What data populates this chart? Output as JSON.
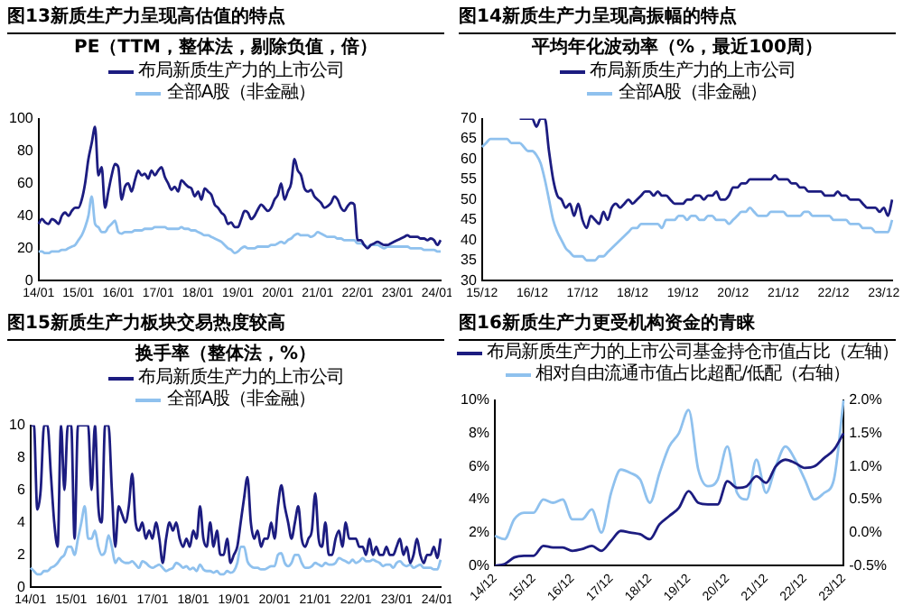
{
  "chart_data": [
    {
      "type": "line",
      "title": "图13新质生产力呈现高估值的特点",
      "subtitle": "PE（TTM，整体法，剔除负值，倍）",
      "legend": "top",
      "marker": "none",
      "categories": [
        "14/01",
        null,
        null,
        null,
        null,
        null,
        null,
        null,
        null,
        null,
        null,
        null,
        "15/01",
        null,
        null,
        null,
        null,
        null,
        null,
        null,
        null,
        null,
        null,
        null,
        "16/01",
        null,
        null,
        null,
        null,
        null,
        null,
        null,
        null,
        null,
        null,
        null,
        "17/01",
        null,
        null,
        null,
        null,
        null,
        null,
        null,
        null,
        null,
        null,
        null,
        "18/01",
        null,
        null,
        null,
        null,
        null,
        null,
        null,
        null,
        null,
        null,
        null,
        "19/01",
        null,
        null,
        null,
        null,
        null,
        null,
        null,
        null,
        null,
        null,
        null,
        "20/01",
        null,
        null,
        null,
        null,
        null,
        null,
        null,
        null,
        null,
        null,
        null,
        "21/01",
        null,
        null,
        null,
        null,
        null,
        null,
        null,
        null,
        null,
        null,
        null,
        "22/01",
        null,
        null,
        null,
        null,
        null,
        null,
        null,
        null,
        null,
        null,
        null,
        "23/01",
        null,
        null,
        null,
        null,
        null,
        null,
        null,
        null,
        null,
        null,
        null,
        "24/01",
        null
      ],
      "series": [
        {
          "name": "布局新质生产力的上市公司",
          "color": "#1c1c80",
          "values": [
            35,
            38,
            36,
            35,
            38,
            37,
            35,
            40,
            42,
            40,
            43,
            45,
            45,
            50,
            60,
            75,
            85,
            95,
            65,
            70,
            45,
            55,
            65,
            72,
            70,
            50,
            58,
            60,
            55,
            62,
            68,
            65,
            66,
            63,
            68,
            65,
            68,
            70,
            64,
            60,
            56,
            58,
            55,
            62,
            60,
            58,
            57,
            52,
            55,
            50,
            57,
            55,
            53,
            47,
            45,
            42,
            40,
            35,
            36,
            33,
            33,
            38,
            43,
            42,
            38,
            40,
            44,
            47,
            45,
            43,
            45,
            50,
            53,
            60,
            50,
            55,
            60,
            75,
            68,
            65,
            57,
            55,
            56,
            52,
            50,
            48,
            45,
            46,
            48,
            52,
            50,
            45,
            43,
            46,
            48,
            47,
            25,
            25,
            22,
            20,
            22,
            23,
            24,
            23,
            22,
            22,
            23,
            24,
            25,
            26,
            27,
            28,
            27,
            27,
            27,
            26,
            26,
            25,
            26,
            25,
            22,
            25
          ]
        },
        {
          "name": "全部A股（非金融）",
          "color": "#8fc1ee",
          "values": [
            18,
            18,
            17,
            17,
            18,
            18,
            18,
            19,
            19,
            20,
            21,
            22,
            25,
            28,
            33,
            40,
            52,
            35,
            33,
            30,
            30,
            33,
            35,
            37,
            30,
            29,
            30,
            30,
            30,
            31,
            31,
            31,
            32,
            32,
            32,
            33,
            33,
            33,
            33,
            32,
            32,
            32,
            32,
            33,
            32,
            32,
            31,
            31,
            30,
            29,
            28,
            28,
            27,
            26,
            25,
            24,
            22,
            20,
            19,
            17,
            18,
            20,
            21,
            20,
            20,
            20,
            21,
            21,
            21,
            21,
            22,
            22,
            23,
            24,
            23,
            25,
            26,
            28,
            29,
            28,
            28,
            28,
            27,
            28,
            30,
            29,
            28,
            27,
            27,
            27,
            26,
            26,
            25,
            25,
            25,
            25,
            23,
            23,
            22,
            21,
            22,
            22,
            22,
            21,
            20,
            21,
            21,
            21,
            21,
            21,
            21,
            21,
            20,
            20,
            20,
            20,
            19,
            19,
            19,
            19,
            18,
            18
          ]
        }
      ],
      "ylim": [
        0,
        100
      ],
      "yticks": [
        0,
        20,
        40,
        60,
        80,
        100
      ]
    },
    {
      "type": "line",
      "title": "图14新质生产力呈现高振幅的特点",
      "subtitle": "平均年化波动率（%，最近100周）",
      "legend": "top",
      "marker": "none",
      "categories": [
        "15/12",
        null,
        null,
        null,
        null,
        null,
        null,
        null,
        null,
        null,
        null,
        null,
        "16/12",
        null,
        null,
        null,
        null,
        null,
        null,
        null,
        null,
        null,
        null,
        null,
        "17/12",
        null,
        null,
        null,
        null,
        null,
        null,
        null,
        null,
        null,
        null,
        null,
        "18/12",
        null,
        null,
        null,
        null,
        null,
        null,
        null,
        null,
        null,
        null,
        null,
        "19/12",
        null,
        null,
        null,
        null,
        null,
        null,
        null,
        null,
        null,
        null,
        null,
        "20/12",
        null,
        null,
        null,
        null,
        null,
        null,
        null,
        null,
        null,
        null,
        null,
        "21/12",
        null,
        null,
        null,
        null,
        null,
        null,
        null,
        null,
        null,
        null,
        null,
        "22/12",
        null,
        null,
        null,
        null,
        null,
        null,
        null,
        null,
        null,
        null,
        null,
        "23/12",
        null,
        null
      ],
      "series": [
        {
          "name": "布局新质生产力的上市公司",
          "color": "#1c1c80",
          "values": [
            null,
            null,
            null,
            null,
            null,
            null,
            null,
            null,
            null,
            70,
            70,
            70,
            70,
            68,
            70,
            70,
            62,
            55,
            51,
            50,
            48,
            49,
            46,
            49,
            45,
            43,
            46,
            45,
            44,
            47,
            45,
            48,
            49,
            48,
            49,
            50,
            49,
            50,
            51,
            52,
            52,
            51,
            52,
            51,
            51,
            50,
            49,
            49,
            49,
            50,
            50,
            51,
            51,
            50,
            51,
            51,
            52,
            50,
            50,
            51,
            53,
            53,
            54,
            54,
            55,
            55,
            55,
            55,
            55,
            55,
            56,
            55,
            55,
            55,
            54,
            54,
            53,
            53,
            52,
            52,
            52,
            52,
            51,
            51,
            51,
            52,
            51,
            51,
            50,
            50,
            50,
            49,
            48,
            48,
            48,
            47,
            48,
            46,
            50
          ]
        },
        {
          "name": "全部A股（非金融）",
          "color": "#8fc1ee",
          "values": [
            63,
            64,
            65,
            65,
            65,
            65,
            65,
            64,
            64,
            64,
            63,
            62,
            62,
            61,
            59,
            55,
            50,
            45,
            42,
            40,
            38,
            37,
            36,
            36,
            36,
            35,
            35,
            35,
            36,
            36,
            37,
            38,
            39,
            40,
            41,
            42,
            43,
            43,
            44,
            44,
            44,
            44,
            44,
            43,
            45,
            45,
            45,
            46,
            46,
            45,
            46,
            46,
            45,
            45,
            46,
            46,
            45,
            45,
            45,
            44,
            45,
            46,
            47,
            47,
            48,
            47,
            46,
            46,
            46,
            47,
            47,
            47,
            47,
            46,
            46,
            46,
            46,
            47,
            47,
            46,
            46,
            46,
            46,
            46,
            45,
            45,
            45,
            45,
            44,
            44,
            44,
            43,
            43,
            43,
            42,
            42,
            42,
            42,
            45
          ]
        }
      ],
      "ylim": [
        30,
        70
      ],
      "yticks": [
        30,
        35,
        40,
        45,
        50,
        55,
        60,
        65,
        70
      ]
    },
    {
      "type": "line",
      "title": "图15新质生产力板块交易热度较高",
      "subtitle": "换手率（整体法，%）",
      "legend": "top",
      "marker": "none",
      "categories": [
        "14/01",
        null,
        null,
        null,
        null,
        null,
        null,
        null,
        null,
        null,
        null,
        null,
        "15/01",
        null,
        null,
        null,
        null,
        null,
        null,
        null,
        null,
        null,
        null,
        null,
        "16/01",
        null,
        null,
        null,
        null,
        null,
        null,
        null,
        null,
        null,
        null,
        null,
        "17/01",
        null,
        null,
        null,
        null,
        null,
        null,
        null,
        null,
        null,
        null,
        null,
        "18/01",
        null,
        null,
        null,
        null,
        null,
        null,
        null,
        null,
        null,
        null,
        null,
        "19/01",
        null,
        null,
        null,
        null,
        null,
        null,
        null,
        null,
        null,
        null,
        null,
        "20/01",
        null,
        null,
        null,
        null,
        null,
        null,
        null,
        null,
        null,
        null,
        null,
        "21/01",
        null,
        null,
        null,
        null,
        null,
        null,
        null,
        null,
        null,
        null,
        null,
        "22/01",
        null,
        null,
        null,
        null,
        null,
        null,
        null,
        null,
        null,
        null,
        null,
        "23/01",
        null,
        null,
        null,
        null,
        null,
        null,
        null,
        null,
        null,
        null,
        null,
        "24/01",
        null
      ],
      "series": [
        {
          "name": "布局新质生产力的上市公司",
          "color": "#1c1c80",
          "values": [
            10,
            10,
            4.8,
            6,
            10,
            10,
            7,
            4,
            2.5,
            10,
            6,
            10,
            10,
            3,
            10,
            10,
            10,
            10,
            6,
            10,
            5,
            4,
            10,
            10,
            6,
            2.5,
            5,
            4.5,
            4,
            5,
            7,
            4,
            3.5,
            4,
            3,
            3.5,
            3,
            4,
            3,
            1.5,
            3,
            4,
            3.5,
            4,
            3,
            2.5,
            3,
            2.5,
            3.5,
            3,
            5,
            3,
            2.5,
            4,
            2.5,
            3.5,
            2,
            2,
            3,
            1.5,
            2,
            2.5,
            4,
            5.5,
            6.8,
            4,
            3,
            3.5,
            2.5,
            3,
            3,
            4,
            3,
            5,
            6.3,
            5,
            4,
            3,
            4,
            5,
            3,
            2.5,
            3,
            3.5,
            5.8,
            3,
            2.5,
            4,
            2,
            2,
            3,
            3.5,
            2.5,
            4,
            3,
            3,
            3,
            2.5,
            2.5,
            2,
            3,
            2,
            2.5,
            2,
            2,
            2.5,
            2,
            2,
            2.5,
            3,
            2,
            2.5,
            1.5,
            2,
            3,
            2,
            1.5,
            2,
            2,
            2.5,
            1.8,
            3
          ]
        },
        {
          "name": "全部A股（非金融）",
          "color": "#8fc1ee",
          "values": [
            1.2,
            1,
            0.8,
            0.8,
            1,
            1,
            1.2,
            1.3,
            1.5,
            1.8,
            2,
            2.5,
            2.5,
            2,
            3,
            4,
            5,
            3,
            3,
            3.5,
            2.5,
            2,
            2.2,
            3.2,
            2.5,
            1.5,
            1.8,
            1.6,
            1.5,
            1.5,
            1.6,
            1.4,
            1.2,
            1.6,
            1.5,
            1.3,
            1.2,
            1.3,
            1.4,
            1.2,
            1,
            1.1,
            1.2,
            1.5,
            1.4,
            1.2,
            1.3,
            1.1,
            1.2,
            1,
            1.4,
            1.1,
            1,
            1,
            0.9,
            1,
            0.8,
            0.8,
            1,
            0.9,
            1,
            1.5,
            2.5,
            2.5,
            1.6,
            1.3,
            1.2,
            1.2,
            1.1,
            1.1,
            1.2,
            1.3,
            1.3,
            2,
            2.1,
            1.5,
            1.3,
            1.5,
            2,
            2,
            1.5,
            1.2,
            1.2,
            1.3,
            1.5,
            1.4,
            1.3,
            1.5,
            1.4,
            1.4,
            1.5,
            1.8,
            1.7,
            1.6,
            1.5,
            1.7,
            1.5,
            1.6,
            1.8,
            1.6,
            1.6,
            1.7,
            1.6,
            1.5,
            1.3,
            1.4,
            1.4,
            1.2,
            1.5,
            1.6,
            1.4,
            1.3,
            1.4,
            1.2,
            1.3,
            1.4,
            1.2,
            1.2,
            1.2,
            1.1,
            1.1,
            1.7
          ]
        }
      ],
      "ylim": [
        0,
        10
      ],
      "yticks": [
        0,
        2,
        4,
        6,
        8,
        10
      ]
    },
    {
      "type": "line",
      "title": "图16新质生产力更受机构资金的青睐",
      "legend": "top",
      "marker": "none",
      "categories": [
        "14/12",
        null,
        null,
        null,
        "15/12",
        null,
        null,
        null,
        "16/12",
        null,
        null,
        null,
        "17/12",
        null,
        null,
        null,
        "18/12",
        null,
        null,
        null,
        "19/12",
        null,
        null,
        null,
        "20/12",
        null,
        null,
        null,
        "21/12",
        null,
        null,
        null,
        "22/12",
        null,
        null,
        null,
        "23/12"
      ],
      "series": [
        {
          "name": "布局新质生产力的上市公司基金持仓市值占比（左轴）",
          "color": "#1c1c80",
          "values": [
            0,
            0.1,
            0.5,
            0.6,
            0.6,
            1.2,
            1.1,
            1.1,
            0.9,
            1.0,
            1.2,
            0.9,
            1.5,
            2.1,
            2.0,
            1.9,
            1.6,
            2.5,
            3.0,
            3.5,
            4.5,
            3.8,
            3.7,
            3.7,
            5.1,
            4.7,
            4.8,
            5.4,
            5.0,
            6.0,
            6.4,
            6.2,
            5.9,
            6.0,
            6.5,
            7.0,
            8.0
          ]
        },
        {
          "name": "相对自由流通市值占比超配/低配（右轴）",
          "color": "#8fc1ee",
          "axis": "y2",
          "values": [
            -0.05,
            -0.1,
            0.2,
            0.3,
            0.3,
            0.5,
            0.45,
            0.5,
            0.2,
            0.2,
            0.35,
            0.0,
            0.6,
            0.95,
            0.9,
            0.8,
            0.45,
            0.9,
            1.3,
            1.5,
            1.85,
            0.95,
            0.7,
            0.8,
            1.3,
            0.6,
            0.5,
            1.1,
            0.6,
            1.0,
            1.3,
            1.1,
            0.8,
            0.5,
            0.6,
            0.8,
            2.0
          ]
        }
      ],
      "ylim": [
        0,
        10
      ],
      "yticks": [
        {
          "value": 0,
          "label": "0%"
        },
        {
          "value": 2,
          "label": "2%"
        },
        {
          "value": 4,
          "label": "4%"
        },
        {
          "value": 6,
          "label": "6%"
        },
        {
          "value": 8,
          "label": "8%"
        },
        {
          "value": 10,
          "label": "10%"
        }
      ],
      "y2lim": [
        -0.5,
        2.0
      ],
      "y2ticks": [
        {
          "value": -0.5,
          "label": "-0.5%"
        },
        {
          "value": 0,
          "label": "0.0%"
        },
        {
          "value": 0.5,
          "label": "0.5%"
        },
        {
          "value": 1.0,
          "label": "1.0%"
        },
        {
          "value": 1.5,
          "label": "1.5%"
        },
        {
          "value": 2.0,
          "label": "2.0%"
        }
      ]
    }
  ]
}
